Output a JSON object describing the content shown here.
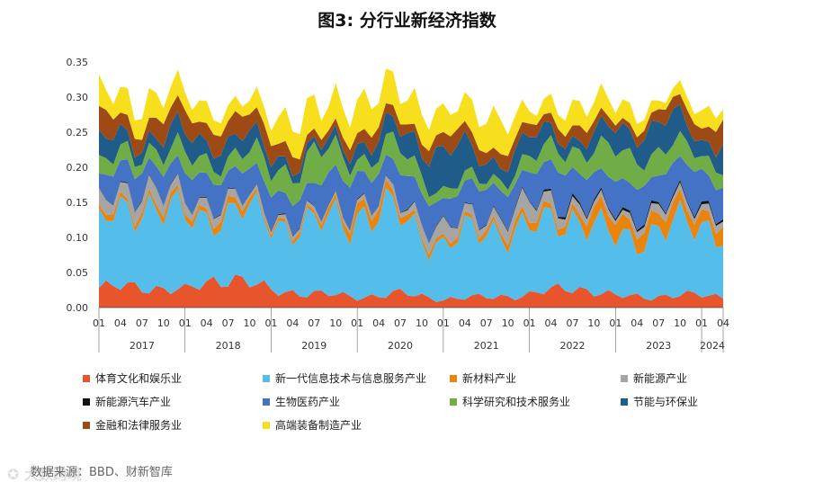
{
  "title": "图3: 分行业新经济指数",
  "source": "数据来源：BBD、财新智库",
  "chart_data": {
    "type": "area",
    "stacked": true,
    "ylim": [
      0,
      0.35
    ],
    "yticks": [
      "0.00",
      "0.05",
      "0.10",
      "0.15",
      "0.20",
      "0.25",
      "0.30",
      "0.35"
    ],
    "month_ticks": [
      "01",
      "04",
      "07",
      "10",
      "01",
      "04",
      "07",
      "10",
      "01",
      "04",
      "07",
      "10",
      "01",
      "04",
      "07",
      "10",
      "01",
      "04",
      "07",
      "10",
      "01",
      "04",
      "07",
      "10",
      "01",
      "04",
      "07",
      "10",
      "01",
      "04"
    ],
    "years": [
      "2017",
      "2018",
      "2019",
      "2020",
      "2021",
      "2022",
      "2023",
      "2024"
    ],
    "x_start": "2017-01",
    "x_end": "2024-04",
    "anchor_months": [
      "2017-01",
      "2017-07",
      "2018-01",
      "2018-07",
      "2019-01",
      "2019-07",
      "2020-01",
      "2020-07",
      "2021-01",
      "2021-07",
      "2022-01",
      "2022-07",
      "2023-01",
      "2023-07",
      "2024-01",
      "2024-04"
    ],
    "series": [
      {
        "name": "体育文化和娱乐业",
        "color": "#E8552C",
        "values": [
          0.028,
          0.03,
          0.024,
          0.045,
          0.024,
          0.02,
          0.015,
          0.02,
          0.012,
          0.015,
          0.018,
          0.03,
          0.016,
          0.016,
          0.018,
          0.016
        ]
      },
      {
        "name": "新一代信息技术与信息服务产业",
        "color": "#55BDEA",
        "values": [
          0.085,
          0.125,
          0.1,
          0.095,
          0.1,
          0.095,
          0.12,
          0.11,
          0.075,
          0.1,
          0.09,
          0.105,
          0.08,
          0.095,
          0.1,
          0.1
        ]
      },
      {
        "name": "新材料产业",
        "color": "#E9840F",
        "values": [
          0.008,
          0.008,
          0.008,
          0.01,
          0.005,
          0.005,
          0.015,
          0.01,
          0.005,
          0.008,
          0.01,
          0.01,
          0.025,
          0.02,
          0.02,
          0.02
        ]
      },
      {
        "name": "新能源产业",
        "color": "#A5A5A5",
        "values": [
          0.02,
          0.018,
          0.015,
          0.01,
          0.005,
          0.005,
          0.005,
          0.008,
          0.02,
          0.01,
          0.025,
          0.01,
          0.008,
          0.01,
          0.01,
          0.008
        ]
      },
      {
        "name": "新能源汽车产业",
        "color": "#111111",
        "values": [
          0.001,
          0.001,
          0.001,
          0.001,
          0.001,
          0.001,
          0.001,
          0.001,
          0.001,
          0.001,
          0.002,
          0.003,
          0.003,
          0.003,
          0.003,
          0.003
        ]
      },
      {
        "name": "生物医药产业",
        "color": "#4472C4",
        "values": [
          0.03,
          0.035,
          0.035,
          0.04,
          0.035,
          0.04,
          0.045,
          0.04,
          0.04,
          0.04,
          0.04,
          0.05,
          0.04,
          0.05,
          0.045,
          0.04
        ]
      },
      {
        "name": "科学研究和技术服务业",
        "color": "#70AD47",
        "values": [
          0.02,
          0.02,
          0.025,
          0.02,
          0.03,
          0.045,
          0.02,
          0.03,
          0.015,
          0.01,
          0.02,
          0.03,
          0.04,
          0.035,
          0.02,
          0.03
        ]
      },
      {
        "name": "节能与环保业",
        "color": "#1F5C8A",
        "values": [
          0.035,
          0.015,
          0.03,
          0.025,
          0.02,
          0.008,
          0.02,
          0.025,
          0.06,
          0.025,
          0.03,
          0.015,
          0.03,
          0.045,
          0.02,
          0.04
        ]
      },
      {
        "name": "金融和法律服务业",
        "color": "#9E4A14",
        "values": [
          0.035,
          0.02,
          0.03,
          0.025,
          0.03,
          0.01,
          0.02,
          0.015,
          0.02,
          0.02,
          0.015,
          0.02,
          0.01,
          0.015,
          0.025,
          0.03
        ]
      },
      {
        "name": "高端装备制造产业",
        "color": "#F7DF1E",
        "values": [
          0.038,
          0.03,
          0.032,
          0.017,
          0.03,
          0.045,
          0.04,
          0.046,
          0.03,
          0.05,
          0.02,
          0.027,
          0.03,
          0.01,
          0.025,
          0.016
        ]
      }
    ]
  }
}
